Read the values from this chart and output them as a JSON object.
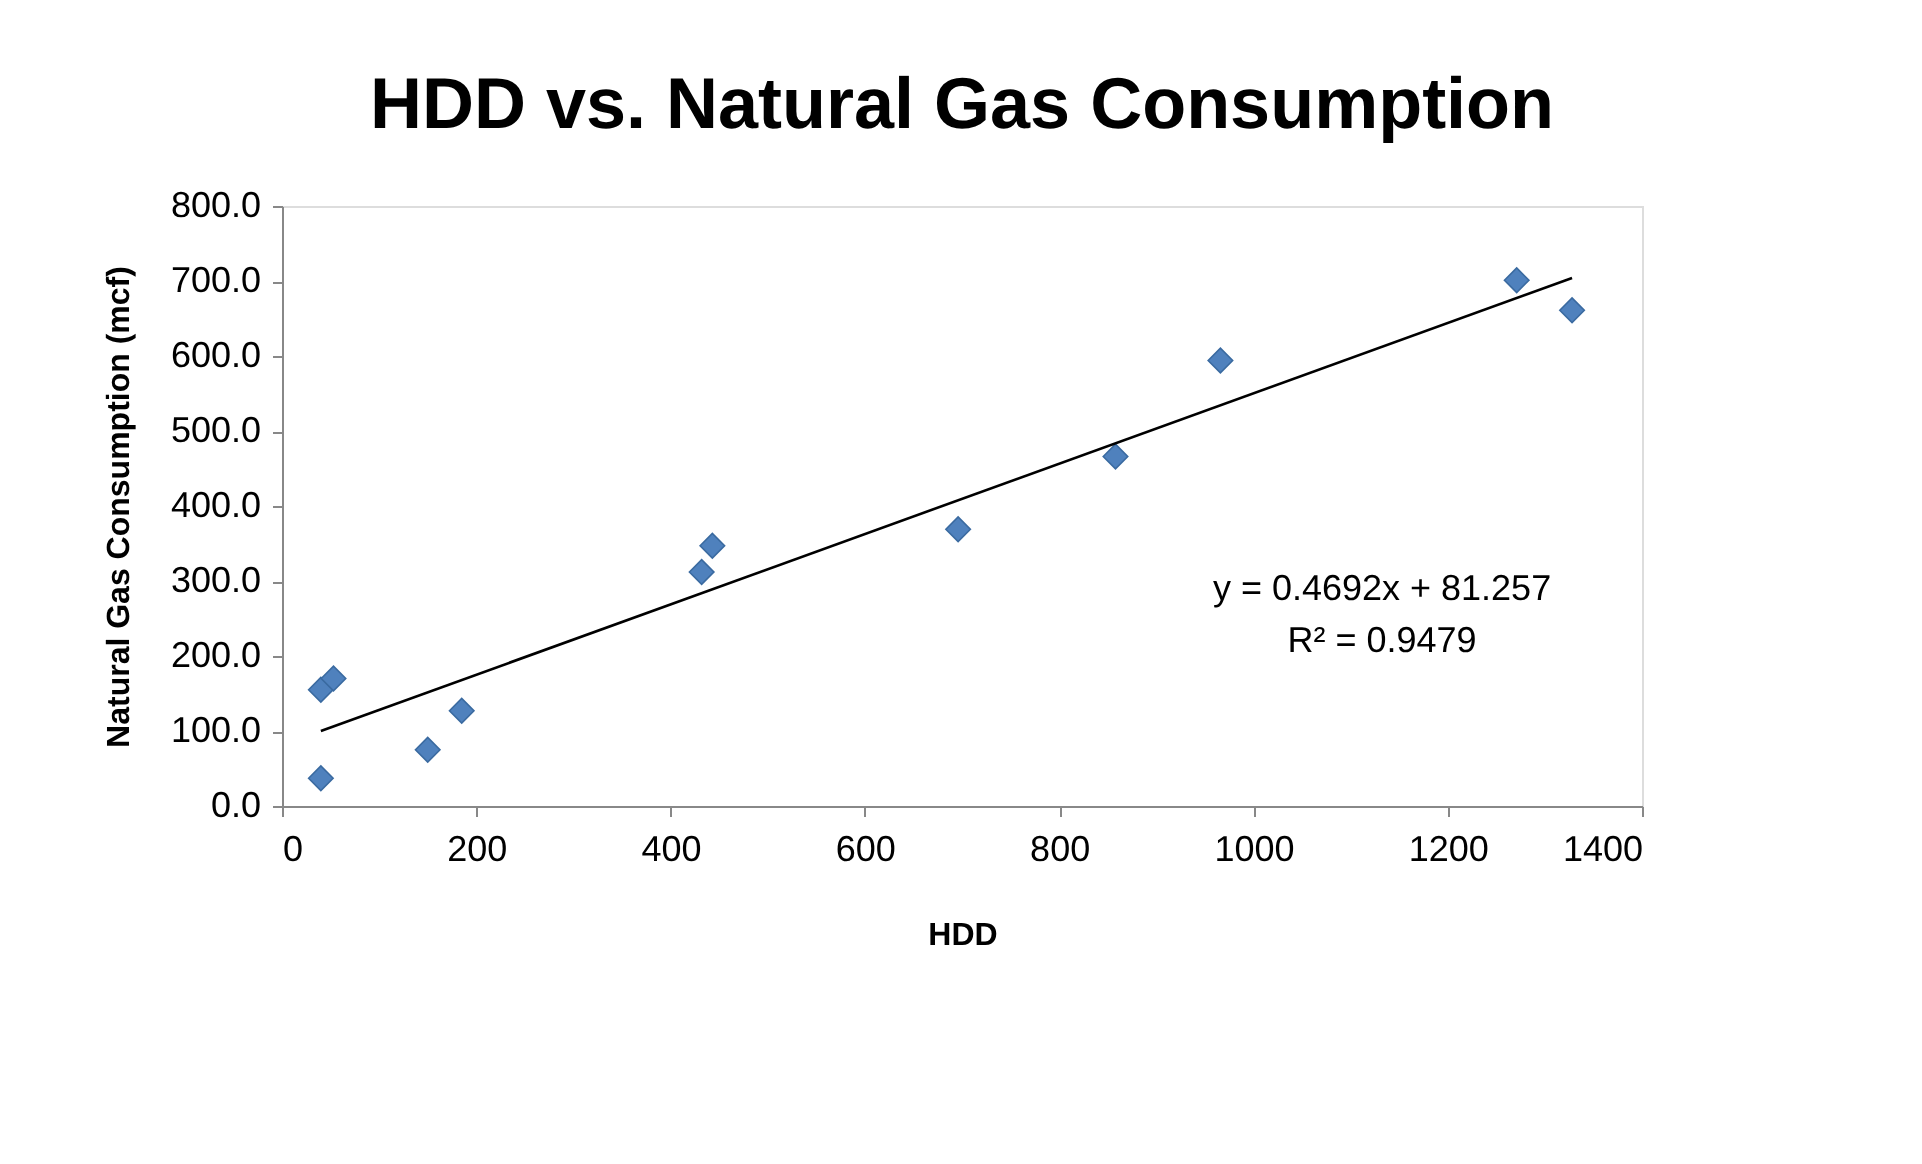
{
  "chart_data": {
    "type": "scatter",
    "title": "HDD vs. Natural Gas Consumption",
    "xlabel": "HDD",
    "ylabel": "Natural Gas Consumption (mcf)",
    "series": [
      {
        "color": "#4f81bd",
        "marker": "diamond",
        "x": [
          40,
          40,
          53,
          150,
          185,
          432,
          443,
          696,
          858,
          966,
          1271,
          1328
        ],
        "values": [
          37,
          155,
          170,
          75,
          127,
          312,
          347,
          369,
          466,
          594,
          701,
          661
        ]
      },
      {
        "type": "line",
        "color": "#000000",
        "line_style": "solid",
        "x": [
          40,
          1328
        ],
        "values": [
          100,
          704
        ]
      }
    ],
    "xlim": [
      0,
      1400
    ],
    "xticks": [
      0,
      200,
      400,
      600,
      800,
      1000,
      1200,
      1400
    ],
    "ylim": [
      0,
      800
    ],
    "yticks": [
      {
        "value": 0,
        "label": "0.0"
      },
      {
        "value": 100,
        "label": "100.0"
      },
      {
        "value": 200,
        "label": "200.0"
      },
      {
        "value": 300,
        "label": "300.0"
      },
      {
        "value": 400,
        "label": "400.0"
      },
      {
        "value": 500,
        "label": "500.0"
      },
      {
        "value": 600,
        "label": "600.0"
      },
      {
        "value": 700,
        "label": "700.0"
      },
      {
        "value": 800,
        "label": "800.0"
      }
    ],
    "annotations": [
      "y = 0.4692x + 81.257",
      "R² = 0.9479"
    ],
    "grid": false,
    "legend": false
  }
}
